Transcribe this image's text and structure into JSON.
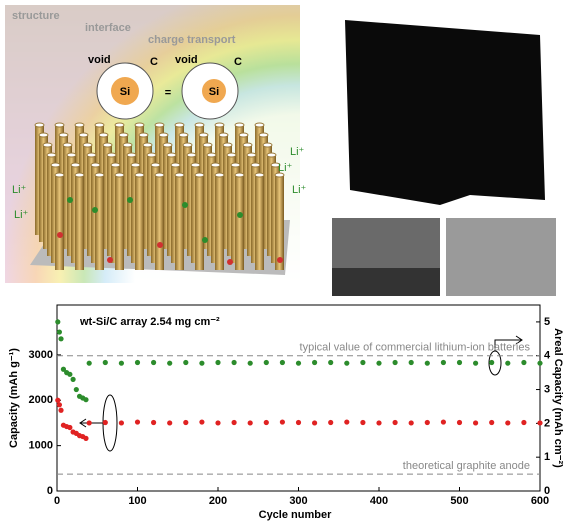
{
  "illustration": {
    "labels": [
      "structure",
      "interface",
      "charge transport"
    ],
    "particles": [
      {
        "void": "void",
        "shell": "C",
        "core": "Si"
      },
      {
        "void": "void",
        "shell": "C",
        "core": "Si"
      }
    ],
    "equals": "=",
    "ions": [
      "Li⁺",
      "Li⁺",
      "Li⁺",
      "Li⁺",
      "Li⁺"
    ]
  },
  "chart_data": {
    "type": "scatter",
    "title": "wt-Si/C array  2.54 mg cm⁻²",
    "x_label": "Cycle number",
    "y_label": "Capacity (mAh g⁻¹)",
    "y2_label": "Areal Capacity (mAh cm⁻²)",
    "x": [
      1,
      3,
      5,
      8,
      12,
      16,
      20,
      24,
      28,
      32,
      36,
      40,
      60,
      80,
      100,
      120,
      140,
      160,
      180,
      200,
      220,
      240,
      260,
      280,
      300,
      320,
      340,
      360,
      380,
      400,
      420,
      440,
      460,
      480,
      500,
      520,
      540,
      560,
      580,
      600
    ],
    "series": [
      {
        "color": "#e02222",
        "axis": "y",
        "values": [
          2000,
          1900,
          1780,
          1450,
          1420,
          1400,
          1300,
          1270,
          1220,
          1200,
          1160,
          1500,
          1510,
          1500,
          1520,
          1510,
          1500,
          1510,
          1520,
          1500,
          1510,
          1500,
          1510,
          1520,
          1510,
          1500,
          1510,
          1520,
          1510,
          1500,
          1510,
          1500,
          1510,
          1520,
          1510,
          1500,
          1510,
          1500,
          1510,
          1500
        ]
      },
      {
        "color": "#2c8c2c",
        "axis": "y2",
        "values": [
          5.0,
          4.7,
          4.5,
          3.6,
          3.5,
          3.45,
          3.3,
          3.0,
          2.8,
          2.75,
          2.7,
          3.78,
          3.8,
          3.78,
          3.8,
          3.8,
          3.78,
          3.8,
          3.78,
          3.8,
          3.8,
          3.78,
          3.8,
          3.8,
          3.78,
          3.8,
          3.8,
          3.78,
          3.8,
          3.78,
          3.8,
          3.8,
          3.78,
          3.8,
          3.8,
          3.78,
          3.8,
          3.78,
          3.8,
          3.78
        ]
      }
    ],
    "reference_lines": [
      {
        "label": "typical value of commercial lithium-ion batteries",
        "value": 4,
        "axis": "y2"
      },
      {
        "label": "theoretical graphite anode",
        "value": 372,
        "axis": "y"
      }
    ],
    "xlim": [
      0,
      600
    ],
    "xticks": [
      0,
      100,
      200,
      300,
      400,
      500,
      600
    ],
    "ylim": [
      0,
      4100
    ],
    "yticks": [
      0,
      1000,
      2000,
      3000
    ],
    "y2lim": [
      0,
      5.5
    ],
    "y2ticks": [
      0,
      1,
      2,
      3,
      4,
      5
    ]
  }
}
